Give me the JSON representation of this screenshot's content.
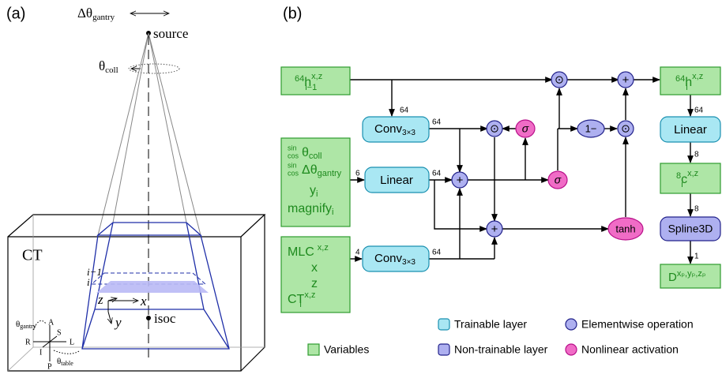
{
  "panel_a": {
    "label": "(a)",
    "delta_theta_gantry": {
      "symbol": "Δθ",
      "sub": "gantry"
    },
    "source": "source",
    "theta_coll": {
      "symbol": "θ",
      "sub": "coll"
    },
    "ct": "CT",
    "slice_prev": "i−1",
    "slice_cur": "i",
    "axis_z": "z",
    "axis_x": "x",
    "axis_y": "y",
    "isoc": "isoc",
    "orientation": {
      "anterior": "A",
      "superior": "S",
      "right": "R",
      "left": "L",
      "inferior": "I",
      "posterior": "P"
    },
    "theta_gantry": {
      "symbol": "θ",
      "sub": "gantry"
    },
    "theta_table": {
      "symbol": "θ",
      "sub": "table"
    }
  },
  "panel_b": {
    "label": "(b)",
    "hidden_prev": {
      "pre": "64",
      "symbol": "h",
      "sup": "x,z",
      "sub": "i−1"
    },
    "beam_inputs": [
      {
        "stack_top": "sin",
        "stack_bottom": "cos",
        "symbol": "θ",
        "sub": "coll"
      },
      {
        "stack_top": "sin",
        "stack_bottom": "cos",
        "symbol": "Δθ",
        "sub": "gantry"
      },
      {
        "symbol": "y",
        "sub": "i"
      },
      {
        "symbol": "magnify",
        "sub": "i"
      }
    ],
    "geometry_inputs": [
      {
        "symbol": "MLC",
        "sup": "x,z"
      },
      {
        "symbol": "x"
      },
      {
        "symbol": "z"
      },
      {
        "symbol": "CT",
        "sup": "x,z",
        "sub": "i"
      }
    ],
    "conv_top": {
      "symbol": "Conv",
      "sub": "3×3"
    },
    "linear_left": "Linear",
    "conv_bottom": {
      "symbol": "Conv",
      "sub": "3×3"
    },
    "ops": [
      "⊙",
      "σ",
      "+",
      "σ",
      "+",
      "tanh",
      "⊙",
      "+",
      "1−",
      "⊙"
    ],
    "hidden_out": {
      "pre": "64",
      "symbol": "h",
      "sup": "x,z",
      "sub": "i"
    },
    "linear_right": "Linear",
    "latent": {
      "pre": "8",
      "symbol": "c",
      "sup": "x,z",
      "sub": "i"
    },
    "spline": "Spline3D",
    "dose": {
      "symbol": "D",
      "sup": "xₚ,yₚ,zₚ"
    },
    "edge_labels": [
      "64",
      "64",
      "6",
      "64",
      "4",
      "64",
      "64",
      "8",
      "8",
      "1"
    ],
    "legend": [
      "Trainable layer",
      "Elementwise operation",
      "Variables",
      "Non-trainable layer",
      "Nonlinear activation"
    ]
  }
}
